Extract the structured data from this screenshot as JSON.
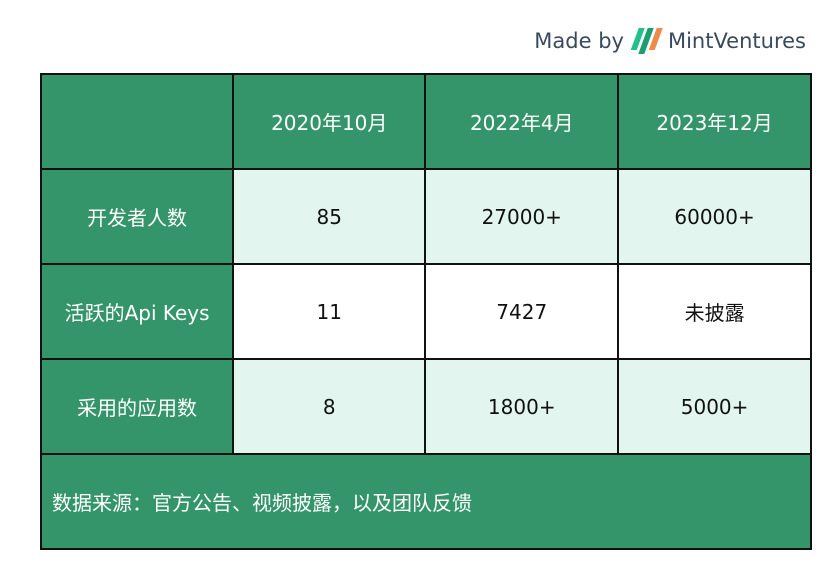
{
  "brand": {
    "made_by": "Made by",
    "name": "MintVentures",
    "colors": [
      "#22c08a",
      "#18a070",
      "#f08a4b"
    ]
  },
  "table": {
    "headers": [
      "",
      "2020年10月",
      "2022年4月",
      "2023年12月"
    ],
    "rows": [
      {
        "label": "开发者人数",
        "values": [
          "85",
          "27000+",
          "60000+"
        ]
      },
      {
        "label": "活跃的Api Keys",
        "values": [
          "11",
          "7427",
          "未披露"
        ]
      },
      {
        "label": "采用的应用数",
        "values": [
          "8",
          "1800+",
          "5000+"
        ]
      }
    ],
    "footer": "数据来源：官方公告、视频披露，以及团队反馈"
  },
  "colors": {
    "green": "#34956a",
    "light": "#e2f5ee"
  }
}
